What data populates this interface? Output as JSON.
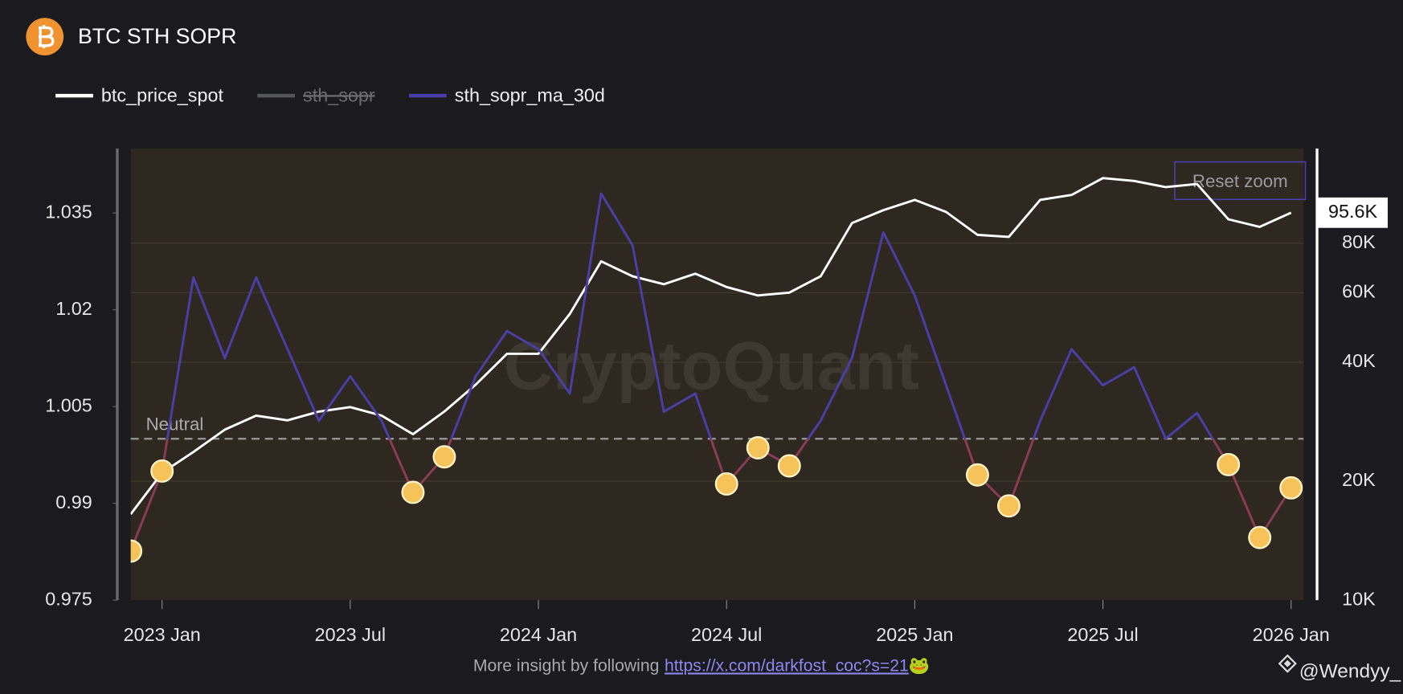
{
  "chart_data": {
    "type": "line",
    "title": "BTC STH SOPR",
    "x": [
      "2022-12",
      "2023-01",
      "2023-02",
      "2023-03",
      "2023-04",
      "2023-05",
      "2023-06",
      "2023-07",
      "2023-08",
      "2023-09",
      "2023-10",
      "2023-11",
      "2023-12",
      "2024-01",
      "2024-02",
      "2024-03",
      "2024-04",
      "2024-05",
      "2024-06",
      "2024-07",
      "2024-08",
      "2024-09",
      "2024-10",
      "2024-11",
      "2024-12",
      "2025-01",
      "2025-02",
      "2025-03",
      "2025-04",
      "2025-05",
      "2025-06",
      "2025-07",
      "2025-08",
      "2025-09",
      "2025-10",
      "2025-11",
      "2025-12",
      "2026-01"
    ],
    "series": [
      {
        "name": "btc_price_spot",
        "color": "#ffffff",
        "axis": "y2",
        "values": [
          16500,
          21000,
          23700,
          27000,
          29300,
          28500,
          30000,
          30800,
          29300,
          26300,
          30000,
          35100,
          42000,
          42000,
          53000,
          72000,
          66000,
          63000,
          67000,
          62000,
          59000,
          60000,
          66000,
          90000,
          97000,
          103000,
          96000,
          84000,
          83000,
          103000,
          106000,
          117000,
          115000,
          111000,
          113000,
          92000,
          88000,
          95600
        ]
      },
      {
        "name": "sth_sopr",
        "color": "#55555c",
        "visible": false
      },
      {
        "name": "sth_sopr_ma_30d",
        "color": "#4a3ea8",
        "below_neutral_color": "#8c3b55",
        "marker_color": "#f5c35a",
        "values": [
          0.9826,
          0.995,
          1.025,
          1.0125,
          1.025,
          1.0139,
          1.0028,
          1.0097,
          1.0028,
          0.9917,
          0.9972,
          1.0097,
          1.0167,
          1.0139,
          1.007,
          1.038,
          1.03,
          1.0042,
          1.007,
          0.993,
          0.9986,
          0.9958,
          1.0028,
          1.0125,
          1.032,
          1.0222,
          1.0083,
          0.9944,
          0.9896,
          1.0028,
          1.0139,
          1.0083,
          1.0111,
          1.0,
          1.004,
          0.996,
          0.9847,
          0.9924
        ]
      }
    ],
    "xlim": [
      "2022-12",
      "2026-01"
    ],
    "xticks": [
      {
        "value": "2023-01",
        "label": "2023 Jan"
      },
      {
        "value": "2023-07",
        "label": "2023 Jul"
      },
      {
        "value": "2024-01",
        "label": "2024 Jan"
      },
      {
        "value": "2024-07",
        "label": "2024 Jul"
      },
      {
        "value": "2025-01",
        "label": "2025 Jan"
      },
      {
        "value": "2025-07",
        "label": "2025 Jul"
      },
      {
        "value": "2026-01",
        "label": "2026 Jan"
      }
    ],
    "ylim": [
      0.975,
      1.045
    ],
    "yticks": [
      0.975,
      0.99,
      1.005,
      1.02,
      1.035
    ],
    "y2lim": [
      10000,
      139000
    ],
    "y2log": true,
    "y2ticks": [
      {
        "value": 10000,
        "label": "10K"
      },
      {
        "value": 20000,
        "label": "20K"
      },
      {
        "value": 40000,
        "label": "40K"
      },
      {
        "value": 60000,
        "label": "60K"
      },
      {
        "value": 80000,
        "label": "80K"
      }
    ],
    "grid": true,
    "annotations": [
      {
        "y": 1,
        "label": "Neutral"
      }
    ],
    "last_price_label": {
      "value": 95600,
      "label": "95.6K"
    },
    "watermark": "CryptoQuant"
  },
  "controls": {
    "reset_zoom": "Reset zoom"
  },
  "footer": {
    "text": "More insight by following",
    "link": "https://x.com/darkfost_coc?s=21",
    "emoji": "🐸"
  },
  "credit": "@Wendyy_"
}
